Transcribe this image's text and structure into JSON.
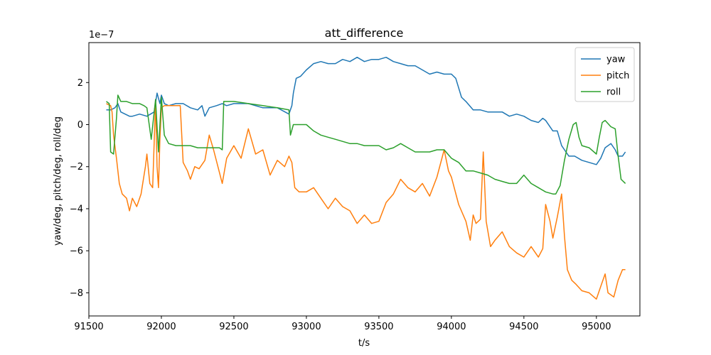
{
  "chart_data": {
    "type": "line",
    "title": "att_difference",
    "xlabel": "t/s",
    "ylabel": "yaw/deg, pitch/deg, roll/deg",
    "y_offset_label": "1e−7",
    "xlim": [
      91500,
      95300
    ],
    "ylim": [
      -9.1,
      3.9
    ],
    "x_ticks": [
      91500,
      92000,
      92500,
      93000,
      93500,
      94000,
      94500,
      95000
    ],
    "y_ticks": [
      -8,
      -6,
      -4,
      -2,
      0,
      2
    ],
    "legend_position": "top-right",
    "grid": false,
    "series": [
      {
        "name": "yaw",
        "color": "#1f77b4",
        "points": [
          [
            91620,
            0.7
          ],
          [
            91650,
            0.7
          ],
          [
            91680,
            0.8
          ],
          [
            91700,
            1.0
          ],
          [
            91720,
            0.6
          ],
          [
            91750,
            0.5
          ],
          [
            91780,
            0.4
          ],
          [
            91800,
            0.4
          ],
          [
            91850,
            0.5
          ],
          [
            91900,
            0.4
          ],
          [
            91950,
            0.6
          ],
          [
            91970,
            1.5
          ],
          [
            91990,
            1.0
          ],
          [
            92000,
            1.4
          ],
          [
            92020,
            1.0
          ],
          [
            92050,
            0.9
          ],
          [
            92100,
            1.0
          ],
          [
            92150,
            1.0
          ],
          [
            92200,
            0.8
          ],
          [
            92250,
            0.7
          ],
          [
            92280,
            0.9
          ],
          [
            92300,
            0.4
          ],
          [
            92330,
            0.8
          ],
          [
            92380,
            0.9
          ],
          [
            92420,
            1.0
          ],
          [
            92450,
            0.9
          ],
          [
            92500,
            1.0
          ],
          [
            92600,
            1.0
          ],
          [
            92700,
            0.8
          ],
          [
            92800,
            0.8
          ],
          [
            92880,
            0.5
          ],
          [
            92900,
            0.9
          ],
          [
            92910,
            1.5
          ],
          [
            92930,
            2.2
          ],
          [
            92960,
            2.3
          ],
          [
            93000,
            2.6
          ],
          [
            93050,
            2.9
          ],
          [
            93100,
            3.0
          ],
          [
            93150,
            2.9
          ],
          [
            93200,
            2.9
          ],
          [
            93250,
            3.1
          ],
          [
            93300,
            3.0
          ],
          [
            93350,
            3.2
          ],
          [
            93400,
            3.0
          ],
          [
            93450,
            3.1
          ],
          [
            93500,
            3.1
          ],
          [
            93550,
            3.2
          ],
          [
            93600,
            3.0
          ],
          [
            93650,
            2.9
          ],
          [
            93700,
            2.8
          ],
          [
            93750,
            2.8
          ],
          [
            93800,
            2.6
          ],
          [
            93850,
            2.4
          ],
          [
            93900,
            2.5
          ],
          [
            93950,
            2.4
          ],
          [
            94000,
            2.4
          ],
          [
            94030,
            2.2
          ],
          [
            94070,
            1.3
          ],
          [
            94100,
            1.1
          ],
          [
            94150,
            0.7
          ],
          [
            94200,
            0.7
          ],
          [
            94250,
            0.6
          ],
          [
            94300,
            0.6
          ],
          [
            94350,
            0.6
          ],
          [
            94400,
            0.4
          ],
          [
            94450,
            0.5
          ],
          [
            94500,
            0.4
          ],
          [
            94550,
            0.2
          ],
          [
            94600,
            0.1
          ],
          [
            94630,
            0.3
          ],
          [
            94650,
            0.2
          ],
          [
            94700,
            -0.3
          ],
          [
            94730,
            -0.3
          ],
          [
            94760,
            -1.0
          ],
          [
            94790,
            -1.3
          ],
          [
            94810,
            -1.5
          ],
          [
            94850,
            -1.5
          ],
          [
            94900,
            -1.7
          ],
          [
            94950,
            -1.8
          ],
          [
            95000,
            -1.9
          ],
          [
            95030,
            -1.6
          ],
          [
            95060,
            -1.1
          ],
          [
            95100,
            -0.9
          ],
          [
            95130,
            -1.2
          ],
          [
            95150,
            -1.5
          ],
          [
            95180,
            -1.5
          ],
          [
            95200,
            -1.3
          ]
        ]
      },
      {
        "name": "pitch",
        "color": "#ff7f0e",
        "points": [
          [
            91620,
            1.0
          ],
          [
            91650,
            0.9
          ],
          [
            91660,
            0.6
          ],
          [
            91670,
            -0.5
          ],
          [
            91690,
            -1.6
          ],
          [
            91710,
            -2.8
          ],
          [
            91730,
            -3.3
          ],
          [
            91760,
            -3.5
          ],
          [
            91780,
            -4.1
          ],
          [
            91800,
            -3.5
          ],
          [
            91830,
            -3.9
          ],
          [
            91860,
            -3.3
          ],
          [
            91890,
            -2.0
          ],
          [
            91900,
            -1.4
          ],
          [
            91920,
            -2.8
          ],
          [
            91940,
            -3.0
          ],
          [
            91960,
            1.1
          ],
          [
            91970,
            -2.0
          ],
          [
            91980,
            -3.0
          ],
          [
            91990,
            -0.7
          ],
          [
            92000,
            0.8
          ],
          [
            92020,
            0.9
          ],
          [
            92050,
            0.9
          ],
          [
            92100,
            0.9
          ],
          [
            92130,
            0.9
          ],
          [
            92150,
            -1.8
          ],
          [
            92180,
            -2.2
          ],
          [
            92200,
            -2.6
          ],
          [
            92230,
            -2.0
          ],
          [
            92260,
            -2.1
          ],
          [
            92300,
            -1.7
          ],
          [
            92330,
            -0.5
          ],
          [
            92360,
            -1.2
          ],
          [
            92390,
            -2.0
          ],
          [
            92420,
            -2.8
          ],
          [
            92450,
            -1.6
          ],
          [
            92500,
            -1.0
          ],
          [
            92550,
            -1.6
          ],
          [
            92600,
            -0.2
          ],
          [
            92650,
            -1.4
          ],
          [
            92700,
            -1.2
          ],
          [
            92750,
            -2.4
          ],
          [
            92800,
            -1.7
          ],
          [
            92850,
            -2.0
          ],
          [
            92880,
            -1.5
          ],
          [
            92900,
            -1.8
          ],
          [
            92920,
            -3.0
          ],
          [
            92950,
            -3.2
          ],
          [
            93000,
            -3.2
          ],
          [
            93050,
            -3.0
          ],
          [
            93100,
            -3.5
          ],
          [
            93150,
            -4.0
          ],
          [
            93200,
            -3.5
          ],
          [
            93250,
            -3.9
          ],
          [
            93300,
            -4.1
          ],
          [
            93350,
            -4.7
          ],
          [
            93400,
            -4.3
          ],
          [
            93450,
            -4.7
          ],
          [
            93500,
            -4.6
          ],
          [
            93550,
            -3.7
          ],
          [
            93600,
            -3.3
          ],
          [
            93650,
            -2.6
          ],
          [
            93700,
            -3.0
          ],
          [
            93750,
            -3.2
          ],
          [
            93800,
            -2.8
          ],
          [
            93850,
            -3.4
          ],
          [
            93900,
            -2.5
          ],
          [
            93950,
            -1.2
          ],
          [
            93980,
            -2.2
          ],
          [
            94000,
            -2.5
          ],
          [
            94050,
            -3.8
          ],
          [
            94100,
            -4.6
          ],
          [
            94130,
            -5.5
          ],
          [
            94150,
            -4.3
          ],
          [
            94170,
            -4.7
          ],
          [
            94200,
            -4.5
          ],
          [
            94220,
            -1.3
          ],
          [
            94240,
            -4.6
          ],
          [
            94270,
            -5.8
          ],
          [
            94300,
            -5.5
          ],
          [
            94350,
            -5.1
          ],
          [
            94400,
            -5.8
          ],
          [
            94450,
            -6.1
          ],
          [
            94500,
            -6.3
          ],
          [
            94550,
            -5.8
          ],
          [
            94600,
            -6.3
          ],
          [
            94630,
            -5.9
          ],
          [
            94650,
            -3.8
          ],
          [
            94680,
            -4.6
          ],
          [
            94700,
            -5.4
          ],
          [
            94730,
            -4.4
          ],
          [
            94760,
            -3.3
          ],
          [
            94780,
            -5.3
          ],
          [
            94800,
            -6.9
          ],
          [
            94830,
            -7.4
          ],
          [
            94860,
            -7.6
          ],
          [
            94900,
            -7.9
          ],
          [
            94950,
            -8.0
          ],
          [
            95000,
            -8.3
          ],
          [
            95030,
            -7.7
          ],
          [
            95060,
            -7.1
          ],
          [
            95080,
            -8.0
          ],
          [
            95120,
            -8.2
          ],
          [
            95150,
            -7.4
          ],
          [
            95180,
            -6.9
          ],
          [
            95200,
            -6.9
          ]
        ]
      },
      {
        "name": "roll",
        "color": "#2ca02c",
        "points": [
          [
            91620,
            1.1
          ],
          [
            91640,
            1.0
          ],
          [
            91650,
            -1.3
          ],
          [
            91670,
            -1.4
          ],
          [
            91690,
            0.3
          ],
          [
            91700,
            1.4
          ],
          [
            91720,
            1.1
          ],
          [
            91760,
            1.1
          ],
          [
            91800,
            1.0
          ],
          [
            91850,
            1.0
          ],
          [
            91880,
            0.9
          ],
          [
            91900,
            0.8
          ],
          [
            91930,
            -0.7
          ],
          [
            91960,
            1.2
          ],
          [
            91980,
            -1.3
          ],
          [
            92000,
            1.3
          ],
          [
            92020,
            -0.5
          ],
          [
            92050,
            -0.9
          ],
          [
            92100,
            -1.0
          ],
          [
            92150,
            -1.0
          ],
          [
            92200,
            -1.0
          ],
          [
            92250,
            -1.1
          ],
          [
            92300,
            -1.1
          ],
          [
            92350,
            -1.1
          ],
          [
            92400,
            -1.1
          ],
          [
            92420,
            -1.2
          ],
          [
            92430,
            1.1
          ],
          [
            92500,
            1.1
          ],
          [
            92600,
            1.0
          ],
          [
            92700,
            0.9
          ],
          [
            92800,
            0.8
          ],
          [
            92880,
            0.7
          ],
          [
            92890,
            -0.5
          ],
          [
            92910,
            0.0
          ],
          [
            92950,
            0.0
          ],
          [
            93000,
            0.0
          ],
          [
            93050,
            -0.3
          ],
          [
            93100,
            -0.5
          ],
          [
            93150,
            -0.6
          ],
          [
            93200,
            -0.7
          ],
          [
            93250,
            -0.8
          ],
          [
            93300,
            -0.9
          ],
          [
            93350,
            -0.9
          ],
          [
            93400,
            -1.0
          ],
          [
            93450,
            -1.0
          ],
          [
            93500,
            -1.0
          ],
          [
            93550,
            -1.2
          ],
          [
            93600,
            -1.1
          ],
          [
            93650,
            -0.9
          ],
          [
            93700,
            -1.1
          ],
          [
            93750,
            -1.3
          ],
          [
            93800,
            -1.3
          ],
          [
            93850,
            -1.3
          ],
          [
            93900,
            -1.2
          ],
          [
            93950,
            -1.2
          ],
          [
            94000,
            -1.6
          ],
          [
            94050,
            -1.8
          ],
          [
            94100,
            -2.2
          ],
          [
            94150,
            -2.2
          ],
          [
            94200,
            -2.3
          ],
          [
            94250,
            -2.4
          ],
          [
            94300,
            -2.6
          ],
          [
            94350,
            -2.7
          ],
          [
            94400,
            -2.8
          ],
          [
            94450,
            -2.8
          ],
          [
            94500,
            -2.4
          ],
          [
            94550,
            -2.8
          ],
          [
            94600,
            -3.0
          ],
          [
            94650,
            -3.2
          ],
          [
            94700,
            -3.3
          ],
          [
            94720,
            -3.3
          ],
          [
            94750,
            -2.9
          ],
          [
            94780,
            -1.7
          ],
          [
            94810,
            -0.7
          ],
          [
            94840,
            0.0
          ],
          [
            94860,
            0.1
          ],
          [
            94880,
            -0.6
          ],
          [
            94900,
            -1.0
          ],
          [
            94950,
            -1.1
          ],
          [
            95000,
            -1.4
          ],
          [
            95020,
            -0.6
          ],
          [
            95040,
            0.1
          ],
          [
            95060,
            0.2
          ],
          [
            95100,
            -0.1
          ],
          [
            95130,
            -0.2
          ],
          [
            95150,
            -1.5
          ],
          [
            95170,
            -2.6
          ],
          [
            95200,
            -2.8
          ]
        ]
      }
    ]
  }
}
